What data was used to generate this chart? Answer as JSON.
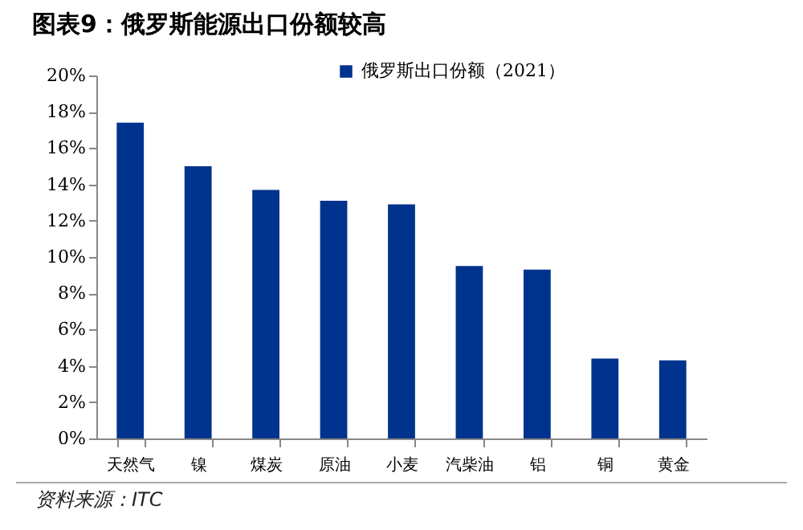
{
  "chart_data": {
    "type": "bar",
    "title": "图表9：俄罗斯能源出口份额较高",
    "categories": [
      "天然气",
      "镍",
      "煤炭",
      "原油",
      "小麦",
      "汽柴油",
      "铝",
      "铜",
      "黄金"
    ],
    "series": [
      {
        "name": "俄罗斯出口份额（2021）",
        "color": "#00338d",
        "values": [
          17.4,
          15.0,
          13.7,
          13.1,
          12.9,
          9.5,
          9.3,
          4.4,
          4.3
        ]
      }
    ],
    "ylim": [
      0,
      20
    ],
    "yticks": [
      {
        "value": 0,
        "label": "0%"
      },
      {
        "value": 2,
        "label": "2%"
      },
      {
        "value": 4,
        "label": "4%"
      },
      {
        "value": 6,
        "label": "6%"
      },
      {
        "value": 8,
        "label": "8%"
      },
      {
        "value": 10,
        "label": "10%"
      },
      {
        "value": 12,
        "label": "12%"
      },
      {
        "value": 14,
        "label": "14%"
      },
      {
        "value": 16,
        "label": "16%"
      },
      {
        "value": 18,
        "label": "18%"
      },
      {
        "value": 20,
        "label": "20%"
      }
    ],
    "grid": false,
    "legend": "top",
    "annotations": [
      "资料来源：ITC"
    ]
  }
}
